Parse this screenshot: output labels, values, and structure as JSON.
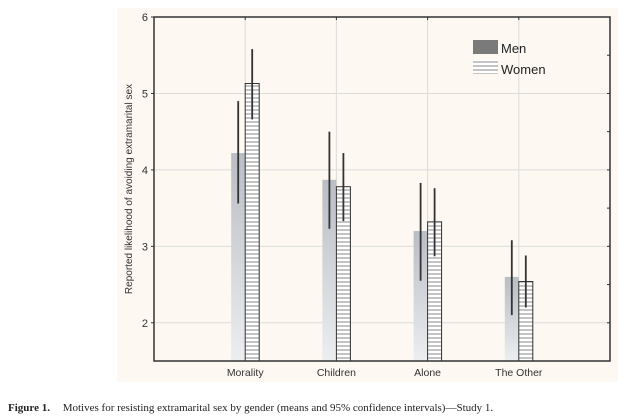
{
  "chart_data": {
    "type": "bar",
    "title": "",
    "xlabel": "",
    "ylabel": "Reported likelihood of avoiding extramarital sex",
    "ylim": [
      1.5,
      6
    ],
    "yticks": [
      2,
      3,
      4,
      5,
      6
    ],
    "grid": true,
    "legend_position": "top-right",
    "categories": [
      "Morality",
      "Children",
      "Alone",
      "The Other"
    ],
    "series": [
      {
        "name": "Men",
        "values": [
          4.22,
          3.87,
          3.2,
          2.6
        ],
        "ci_low": [
          3.56,
          3.23,
          2.55,
          2.1
        ],
        "ci_high": [
          4.9,
          4.5,
          3.83,
          3.08
        ],
        "style": "gray-gradient"
      },
      {
        "name": "Women",
        "values": [
          5.13,
          3.78,
          3.32,
          2.54
        ],
        "ci_low": [
          4.66,
          3.33,
          2.87,
          2.2
        ],
        "ci_high": [
          5.58,
          4.22,
          3.76,
          2.88
        ],
        "style": "horizontal-stripes"
      }
    ],
    "colors": {
      "background": "#fdf8f1",
      "men_top": "#b9bdc4",
      "men_bottom": "#eceef0",
      "women_stripe": "#8a8a8a",
      "axis": "#333333",
      "grid": "#dcdcdc",
      "error_bar": "#333333"
    }
  },
  "caption": {
    "figure_number": "Figure 1.",
    "text": "Motives for resisting extramarital sex by gender (means and 95% confidence intervals)—Study 1."
  }
}
